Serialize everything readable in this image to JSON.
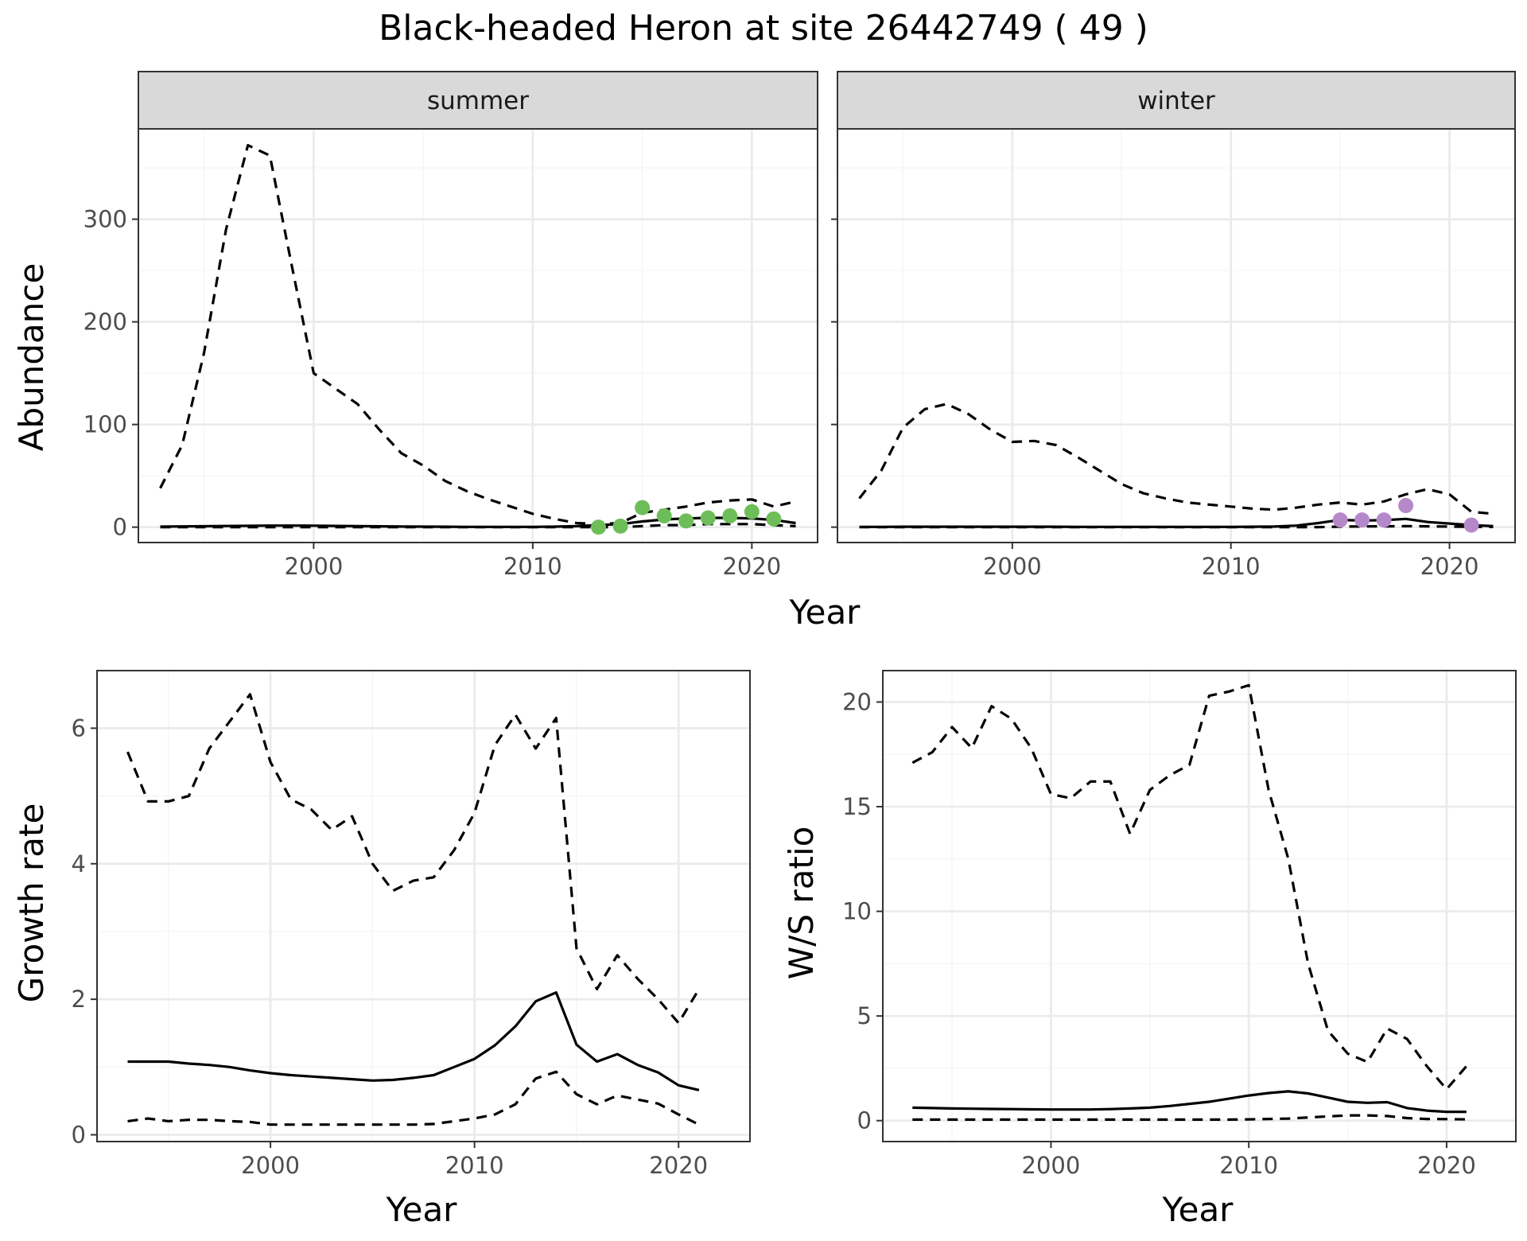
{
  "title": "Black-headed Heron at site 26442749 ( 49 )",
  "colors": {
    "summer_points": "#6dbe58",
    "winter_points": "#b589c9"
  },
  "chart_data": [
    {
      "type": "line",
      "panel": "summer",
      "strip": "summer",
      "ylabel": "Abundance",
      "xlabel": "Year",
      "xlim": [
        1992,
        2023
      ],
      "ylim": [
        -15,
        388
      ],
      "x_ticks": [
        2000,
        2010,
        2020
      ],
      "y_ticks": [
        0,
        100,
        200,
        300
      ],
      "grid": true,
      "x": [
        1993,
        1994,
        1995,
        1996,
        1997,
        1998,
        1999,
        2000,
        2001,
        2002,
        2003,
        2004,
        2005,
        2006,
        2007,
        2008,
        2009,
        2010,
        2011,
        2012,
        2013,
        2014,
        2015,
        2016,
        2017,
        2018,
        2019,
        2020,
        2021,
        2022
      ],
      "series": [
        {
          "style": "dashed",
          "values": [
            38,
            80,
            170,
            290,
            372,
            362,
            255,
            150,
            135,
            120,
            95,
            72,
            60,
            45,
            35,
            27,
            20,
            13,
            8,
            4,
            3,
            4,
            14,
            17,
            20,
            24,
            26,
            27,
            20,
            25
          ]
        },
        {
          "style": "solid",
          "values": [
            0.5,
            0.7,
            0.9,
            1.1,
            1.3,
            1.5,
            1.5,
            1.4,
            1.2,
            1.0,
            0.8,
            0.6,
            0.5,
            0.4,
            0.3,
            0.3,
            0.3,
            0.3,
            0.5,
            1.0,
            2.0,
            3.0,
            5.5,
            7.5,
            8.5,
            9.0,
            9.0,
            8.5,
            7.0,
            4.0
          ]
        },
        {
          "style": "dashed",
          "values": [
            0,
            0,
            0,
            0,
            0,
            0,
            0,
            0,
            0,
            0,
            0,
            0,
            0,
            0,
            0,
            0,
            0,
            0,
            0,
            0,
            0,
            0,
            1,
            2,
            2,
            3,
            3,
            3,
            2,
            1
          ]
        }
      ],
      "points": {
        "x": [
          2013,
          2014,
          2015,
          2016,
          2017,
          2018,
          2019,
          2020,
          2021
        ],
        "y": [
          0,
          1,
          19,
          11,
          6,
          9,
          11,
          15,
          8
        ],
        "color": "#6dbe58"
      }
    },
    {
      "type": "line",
      "panel": "winter",
      "strip": "winter",
      "ylabel": "",
      "xlabel": "Year",
      "xlim": [
        1992,
        2023
      ],
      "ylim": [
        -15,
        388
      ],
      "x_ticks": [
        2000,
        2010,
        2020
      ],
      "y_ticks": [
        0,
        100,
        200,
        300
      ],
      "grid": true,
      "x": [
        1993,
        1994,
        1995,
        1996,
        1997,
        1998,
        1999,
        2000,
        2001,
        2002,
        2003,
        2004,
        2005,
        2006,
        2007,
        2008,
        2009,
        2010,
        2011,
        2012,
        2013,
        2014,
        2015,
        2016,
        2017,
        2018,
        2019,
        2020,
        2021,
        2022
      ],
      "series": [
        {
          "style": "dashed",
          "values": [
            28,
            55,
            97,
            115,
            120,
            110,
            95,
            83,
            84,
            80,
            68,
            55,
            42,
            33,
            28,
            24,
            22,
            20,
            18,
            17,
            19,
            22,
            24,
            22,
            25,
            32,
            37,
            32,
            15,
            13
          ]
        },
        {
          "style": "solid",
          "values": [
            0.3,
            0.3,
            0.4,
            0.4,
            0.4,
            0.4,
            0.4,
            0.4,
            0.4,
            0.4,
            0.3,
            0.3,
            0.3,
            0.3,
            0.3,
            0.3,
            0.3,
            0.3,
            0.4,
            0.6,
            1.5,
            4.0,
            7.0,
            6.5,
            6.8,
            8.0,
            5.0,
            3.5,
            2.0,
            1.0
          ]
        },
        {
          "style": "dashed",
          "values": [
            0,
            0,
            0,
            0,
            0,
            0,
            0,
            0,
            0,
            0,
            0,
            0,
            0,
            0,
            0,
            0,
            0,
            0,
            0,
            0,
            0,
            0,
            0.5,
            0.7,
            0.8,
            1.0,
            0.8,
            0.6,
            0.3,
            0.2
          ]
        }
      ],
      "points": {
        "x": [
          2015,
          2016,
          2017,
          2018,
          2021
        ],
        "y": [
          7,
          7,
          7,
          21,
          2
        ],
        "color": "#b589c9"
      }
    },
    {
      "type": "line",
      "panel": "growth",
      "ylabel": "Growth rate",
      "xlabel": "Year",
      "xlim": [
        1991.5,
        2023.5
      ],
      "ylim": [
        -0.1,
        6.85
      ],
      "x_ticks": [
        2000,
        2010,
        2020
      ],
      "y_ticks": [
        0,
        2,
        4,
        6
      ],
      "grid": true,
      "x": [
        1993,
        1994,
        1995,
        1996,
        1997,
        1998,
        1999,
        2000,
        2001,
        2002,
        2003,
        2004,
        2005,
        2006,
        2007,
        2008,
        2009,
        2010,
        2011,
        2012,
        2013,
        2014,
        2015,
        2016,
        2017,
        2018,
        2019,
        2020,
        2021
      ],
      "series": [
        {
          "style": "dashed",
          "values": [
            5.65,
            4.92,
            4.92,
            5.0,
            5.7,
            6.1,
            6.5,
            5.5,
            4.95,
            4.8,
            4.5,
            4.7,
            4.0,
            3.6,
            3.75,
            3.8,
            4.2,
            4.75,
            5.75,
            6.2,
            5.7,
            6.15,
            2.75,
            2.15,
            2.65,
            2.3,
            2.0,
            1.65,
            2.15
          ]
        },
        {
          "style": "solid",
          "values": [
            1.08,
            1.08,
            1.08,
            1.05,
            1.03,
            1.0,
            0.95,
            0.91,
            0.88,
            0.86,
            0.84,
            0.82,
            0.8,
            0.81,
            0.84,
            0.88,
            1.0,
            1.12,
            1.32,
            1.6,
            1.97,
            2.1,
            1.33,
            1.08,
            1.19,
            1.03,
            0.92,
            0.73,
            0.66
          ]
        },
        {
          "style": "dashed",
          "values": [
            0.2,
            0.24,
            0.2,
            0.22,
            0.22,
            0.2,
            0.19,
            0.15,
            0.15,
            0.15,
            0.15,
            0.15,
            0.15,
            0.15,
            0.15,
            0.16,
            0.2,
            0.24,
            0.3,
            0.45,
            0.83,
            0.93,
            0.6,
            0.45,
            0.58,
            0.52,
            0.46,
            0.3,
            0.15
          ]
        }
      ]
    },
    {
      "type": "line",
      "panel": "ratio",
      "ylabel": "W/S ratio",
      "xlabel": "Year",
      "xlim": [
        1991.5,
        2023.5
      ],
      "ylim": [
        -1,
        21.5
      ],
      "x_ticks": [
        2000,
        2010,
        2020
      ],
      "y_ticks": [
        0,
        5,
        10,
        15,
        20
      ],
      "grid": true,
      "x": [
        1993,
        1994,
        1995,
        1996,
        1997,
        1998,
        1999,
        2000,
        2001,
        2002,
        2003,
        2004,
        2005,
        2006,
        2007,
        2008,
        2009,
        2010,
        2011,
        2012,
        2013,
        2014,
        2015,
        2016,
        2017,
        2018,
        2019,
        2020,
        2021
      ],
      "series": [
        {
          "style": "dashed",
          "values": [
            17.1,
            17.6,
            18.8,
            17.8,
            19.8,
            19.2,
            17.8,
            15.6,
            15.4,
            16.2,
            16.2,
            13.7,
            15.8,
            16.5,
            17.0,
            20.3,
            20.5,
            20.8,
            15.8,
            12.5,
            7.5,
            4.3,
            3.2,
            2.8,
            4.4,
            3.9,
            2.6,
            1.5,
            2.6
          ]
        },
        {
          "style": "solid",
          "values": [
            0.62,
            0.6,
            0.58,
            0.57,
            0.56,
            0.55,
            0.54,
            0.53,
            0.53,
            0.53,
            0.55,
            0.58,
            0.62,
            0.7,
            0.8,
            0.9,
            1.05,
            1.2,
            1.32,
            1.4,
            1.3,
            1.1,
            0.9,
            0.85,
            0.88,
            0.6,
            0.48,
            0.42,
            0.42
          ]
        },
        {
          "style": "dashed",
          "values": [
            0.05,
            0.05,
            0.05,
            0.05,
            0.05,
            0.05,
            0.05,
            0.05,
            0.05,
            0.05,
            0.05,
            0.05,
            0.05,
            0.05,
            0.05,
            0.05,
            0.05,
            0.06,
            0.08,
            0.1,
            0.15,
            0.2,
            0.25,
            0.25,
            0.22,
            0.12,
            0.08,
            0.07,
            0.06
          ]
        }
      ]
    }
  ]
}
